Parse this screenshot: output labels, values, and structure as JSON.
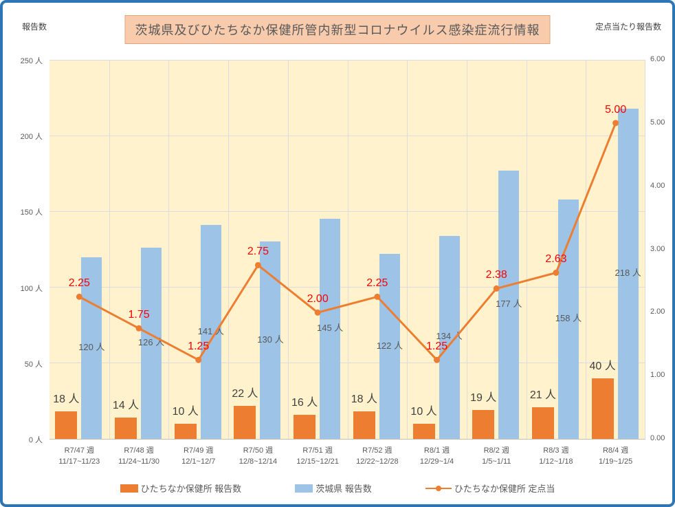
{
  "frame": {
    "border_color": "#2E75B6",
    "background": "#FFFFFF"
  },
  "header": {
    "title": "茨城県及びひたちなか保健所管内新型コロナウイルス感染症流行情報",
    "title_bg": "#F8CBAD",
    "title_border": "#DFA67E",
    "left_axis_title": "報告数",
    "right_axis_title": "定点当たり報告数"
  },
  "chart_data": {
    "type": "combo-bar-line",
    "plot_bg": "#FFF2CC",
    "gridline_color": "#DCDCDC",
    "categories": [
      "R7/47 週",
      "R7/48 週",
      "R7/49 週",
      "R7/50 週",
      "R7/51 週",
      "R7/52 週",
      "R8/1 週",
      "R8/2 週",
      "R8/3 週",
      "R8/4 週"
    ],
    "category_dates": [
      "11/17~11/23",
      "11/24~11/30",
      "12/1~12/7",
      "12/8~12/14",
      "12/15~12/21",
      "12/22~12/28",
      "12/29~1/4",
      "1/5~1/11",
      "1/12~1/18",
      "1/19~1/25"
    ],
    "left_axis": {
      "min": 0,
      "max": 250,
      "step": 50,
      "ticks": [
        "250 人",
        "200 人",
        "150 人",
        "100 人",
        "50 人",
        "0 人"
      ]
    },
    "right_axis": {
      "min": 0,
      "max": 6,
      "step": 1,
      "ticks": [
        "6.00",
        "5.00",
        "4.00",
        "3.00",
        "2.00",
        "1.00",
        "0.00"
      ]
    },
    "series": [
      {
        "name": "ひたちなか保健所 報告数",
        "type": "bar",
        "axis": "left",
        "color": "#ED7D31",
        "values": [
          18,
          14,
          10,
          22,
          16,
          18,
          10,
          19,
          21,
          40
        ],
        "labels": [
          "18 人",
          "14 人",
          "10 人",
          "22 人",
          "16 人",
          "18 人",
          "10 人",
          "19 人",
          "21 人",
          "40 人"
        ],
        "label_position": "above",
        "label_color": "#404040"
      },
      {
        "name": "茨城県 報告数",
        "type": "bar",
        "axis": "left",
        "color": "#9DC3E6",
        "values": [
          120,
          126,
          141,
          130,
          145,
          122,
          134,
          177,
          158,
          218
        ],
        "labels": [
          "120 人",
          "126 人",
          "141 人",
          "130 人",
          "145 人",
          "122 人",
          "134 人",
          "177 人",
          "158 人",
          "218 人"
        ],
        "label_position": "center",
        "label_color": "#595959"
      },
      {
        "name": "ひたちなか保健所 定点当",
        "type": "line",
        "axis": "right",
        "color": "#ED7D31",
        "values": [
          2.25,
          1.75,
          1.25,
          2.75,
          2.0,
          2.25,
          1.25,
          2.38,
          2.63,
          5.0
        ],
        "labels": [
          "2.25",
          "1.75",
          "1.25",
          "2.75",
          "2.00",
          "2.25",
          "1.25",
          "2.38",
          "2.63",
          "5.00"
        ],
        "label_color": "#FF0000"
      }
    ],
    "legend": [
      {
        "label": "ひたちなか保健所 報告数",
        "swatch": "bar",
        "color": "#ED7D31"
      },
      {
        "label": "茨城県 報告数",
        "swatch": "bar",
        "color": "#9DC3E6"
      },
      {
        "label": "ひたちなか保健所 定点当",
        "swatch": "line",
        "color": "#ED7D31"
      }
    ]
  }
}
